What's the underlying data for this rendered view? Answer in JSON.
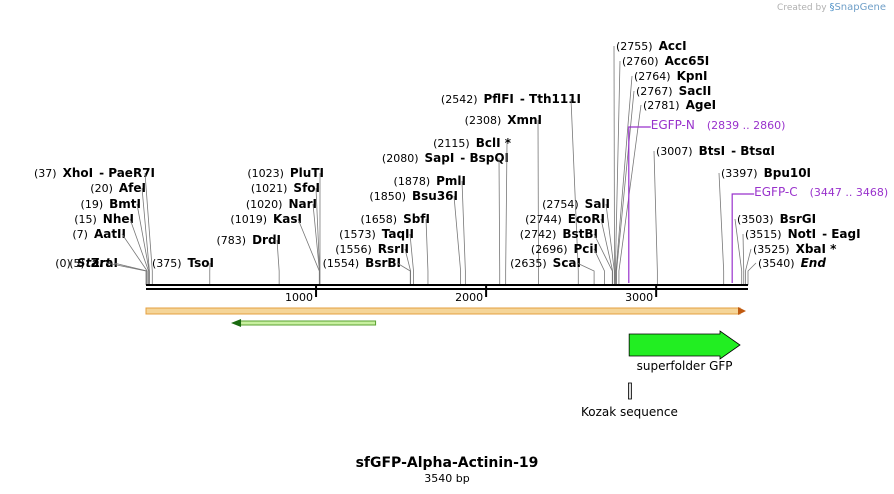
{
  "branding": {
    "created_by": "Created by",
    "app": "SnapGene"
  },
  "plasmid": {
    "name": "sfGFP-Alpha-Actinin-19",
    "size_label": "3540 bp",
    "length": 3540
  },
  "colors": {
    "primer": "#9932cc",
    "feature_green": "#22ee22",
    "orf_arrow": "#e4a040",
    "text": "#000000"
  },
  "ticks": [
    {
      "pos": 1000,
      "label": "1000"
    },
    {
      "pos": 2000,
      "label": "2000"
    },
    {
      "pos": 3000,
      "label": "3000"
    }
  ],
  "sites": [
    {
      "pos": "(37)",
      "name": "XhoI",
      "extra": "- PaeR7I",
      "bp": 37
    },
    {
      "pos": "(20)",
      "name": "AfeI",
      "bp": 20
    },
    {
      "pos": "(19)",
      "name": "BmtI",
      "bp": 19
    },
    {
      "pos": "(15)",
      "name": "NheI",
      "bp": 15
    },
    {
      "pos": "(7)",
      "name": "AatII",
      "bp": 7
    },
    {
      "pos": "(5)",
      "name": "ZraI",
      "bp": 5
    },
    {
      "pos": "(0)",
      "name": "Start",
      "italic": true,
      "bp": 0
    },
    {
      "pos": "(375)",
      "name": "TsoI",
      "bp": 375
    },
    {
      "pos": "(1023)",
      "name": "PluTI",
      "bp": 1023
    },
    {
      "pos": "(1021)",
      "name": "SfoI",
      "bp": 1021
    },
    {
      "pos": "(1020)",
      "name": "NarI",
      "bp": 1020
    },
    {
      "pos": "(1019)",
      "name": "KasI",
      "bp": 1019
    },
    {
      "pos": "(783)",
      "name": "DrdI",
      "bp": 783
    },
    {
      "pos": "(1658)",
      "name": "SbfI",
      "bp": 1658
    },
    {
      "pos": "(1573)",
      "name": "TaqII",
      "bp": 1573
    },
    {
      "pos": "(1556)",
      "name": "RsrII",
      "bp": 1556
    },
    {
      "pos": "(1554)",
      "name": "BsrBI",
      "bp": 1554
    },
    {
      "pos": "(1878)",
      "name": "PmlI",
      "bp": 1878
    },
    {
      "pos": "(1850)",
      "name": "Bsu36I",
      "bp": 1850
    },
    {
      "pos": "(2080)",
      "name": "SapI",
      "extra": "- BspQI",
      "bp": 2080
    },
    {
      "pos": "(2115)",
      "name": "BclI *",
      "bp": 2115
    },
    {
      "pos": "(2308)",
      "name": "XmnI",
      "bp": 2308
    },
    {
      "pos": "(2542)",
      "name": "PflFI",
      "extra": "- Tth111I",
      "bp": 2542
    },
    {
      "pos": "(2754)",
      "name": "SalI",
      "bp": 2754
    },
    {
      "pos": "(2744)",
      "name": "EcoRI",
      "bp": 2744
    },
    {
      "pos": "(2742)",
      "name": "BstBI",
      "bp": 2742
    },
    {
      "pos": "(2696)",
      "name": "PciI",
      "bp": 2696
    },
    {
      "pos": "(2635)",
      "name": "ScaI",
      "bp": 2635
    },
    {
      "pos": "(2755)",
      "name": "AccI",
      "right": true,
      "bp": 2755
    },
    {
      "pos": "(2760)",
      "name": "Acc65I",
      "right": true,
      "bp": 2760
    },
    {
      "pos": "(2764)",
      "name": "KpnI",
      "right": true,
      "bp": 2764
    },
    {
      "pos": "(2767)",
      "name": "SacII",
      "right": true,
      "bp": 2767
    },
    {
      "pos": "(2781)",
      "name": "AgeI",
      "right": true,
      "bp": 2781
    },
    {
      "pos": "(3007)",
      "name": "BtsI",
      "extra": "- BtsαI",
      "right": true,
      "bp": 3007
    },
    {
      "pos": "(3397)",
      "name": "Bpu10I",
      "right": true,
      "bp": 3397
    },
    {
      "pos": "(3503)",
      "name": "BsrGI",
      "right": true,
      "bp": 3503
    },
    {
      "pos": "(3515)",
      "name": "NotI",
      "extra": "- EagI",
      "right": true,
      "bp": 3515
    },
    {
      "pos": "(3525)",
      "name": "XbaI *",
      "right": true,
      "bp": 3525
    },
    {
      "pos": "(3540)",
      "name": "End",
      "italic": true,
      "right": true,
      "bp": 3540
    }
  ],
  "primers": [
    {
      "name": "EGFP-N",
      "range": "(2839 .. 2860)",
      "start": 2839,
      "end": 2860
    },
    {
      "name": "EGFP-C",
      "range": "(3447 .. 3468)",
      "start": 3447,
      "end": 3468
    }
  ],
  "features": [
    {
      "name": "superfolder GFP",
      "start": 2800,
      "end": 3540,
      "kind": "arrow-right"
    },
    {
      "name": "Kozak sequence",
      "start": 2790,
      "end": 2800,
      "kind": "box"
    }
  ],
  "orfs": [
    {
      "start": 0,
      "end": 3540,
      "direction": "forward"
    },
    {
      "start": 500,
      "end": 1350,
      "direction": "reverse"
    }
  ]
}
